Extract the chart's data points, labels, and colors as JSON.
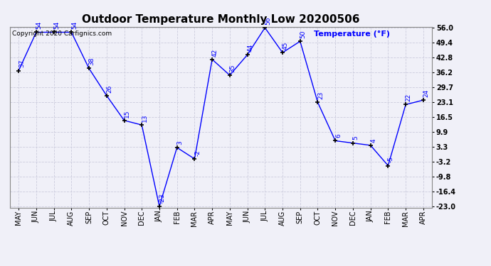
{
  "title": "Outdoor Temperature Monthly Low 20200506",
  "copyright": "Copyright 2020 Carfignics.com",
  "ylabel": "Temperature (°F)",
  "months": [
    "MAY",
    "JUN",
    "JUL",
    "AUG",
    "SEP",
    "OCT",
    "NOV",
    "DEC",
    "JAN",
    "FEB",
    "MAR",
    "APR",
    "MAY",
    "JUN",
    "JUL",
    "AUG",
    "SEP",
    "OCT",
    "NOV",
    "DEC",
    "JAN",
    "FEB",
    "MAR",
    "APR"
  ],
  "values": [
    37,
    54,
    54,
    54,
    38,
    26,
    15,
    13,
    -23,
    3,
    -2,
    42,
    35,
    44,
    56,
    45,
    50,
    23,
    6,
    5,
    4,
    -5,
    22,
    24
  ],
  "ylim": [
    -23.0,
    56.0
  ],
  "yticks": [
    -23.0,
    -16.4,
    -9.8,
    -3.2,
    3.3,
    9.9,
    16.5,
    23.1,
    29.7,
    36.2,
    42.8,
    49.4,
    56.0
  ],
  "line_color": "blue",
  "marker": "+",
  "marker_color": "black",
  "label_color": "blue",
  "background_color": "#f0f0f8",
  "grid_color": "#ccccdd",
  "title_fontsize": 11,
  "label_fontsize": 6.5,
  "tick_fontsize": 7,
  "copyright_fontsize": 6.5
}
